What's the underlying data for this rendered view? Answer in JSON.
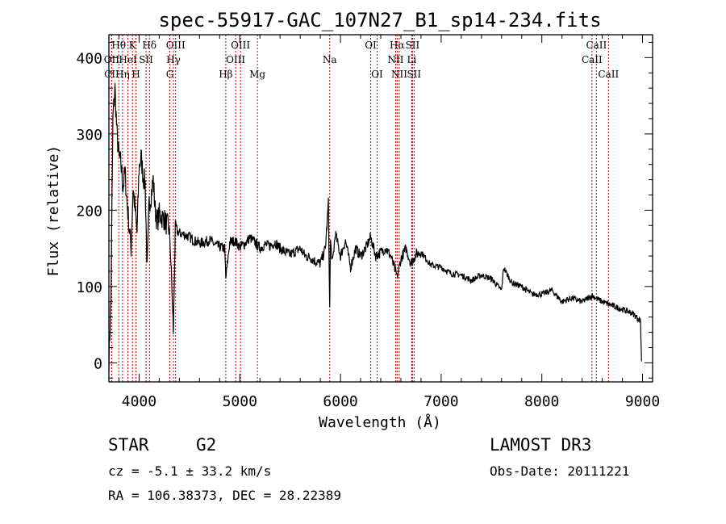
{
  "chart_data": {
    "type": "line",
    "title": "spec-55917-GAC_107N27_B1_sp14-234.fits",
    "xlabel": "Wavelength (Å)",
    "ylabel": "Flux (relative)",
    "xlim": [
      3700,
      9100
    ],
    "ylim": [
      -25,
      430
    ],
    "x_ticks": [
      4000,
      5000,
      6000,
      7000,
      8000,
      9000
    ],
    "y_ticks": [
      0,
      100,
      200,
      300,
      400
    ],
    "series": [
      {
        "name": "flux",
        "x": [
          3700,
          3720,
          3740,
          3760,
          3780,
          3800,
          3820,
          3840,
          3860,
          3880,
          3900,
          3920,
          3940,
          3960,
          3980,
          4000,
          4020,
          4040,
          4060,
          4080,
          4100,
          4120,
          4140,
          4160,
          4180,
          4200,
          4250,
          4300,
          4320,
          4340,
          4360,
          4380,
          4400,
          4450,
          4500,
          4550,
          4600,
          4650,
          4700,
          4750,
          4800,
          4850,
          4861,
          4900,
          4950,
          5000,
          5050,
          5100,
          5150,
          5200,
          5250,
          5300,
          5350,
          5400,
          5450,
          5500,
          5550,
          5600,
          5650,
          5700,
          5750,
          5800,
          5850,
          5880,
          5893,
          5900,
          5920,
          5950,
          6000,
          6050,
          6100,
          6150,
          6200,
          6250,
          6300,
          6350,
          6400,
          6450,
          6500,
          6563,
          6600,
          6650,
          6700,
          6750,
          6800,
          6900,
          7000,
          7100,
          7200,
          7300,
          7400,
          7500,
          7600,
          7620,
          7700,
          7800,
          7900,
          8000,
          8100,
          8200,
          8300,
          8400,
          8500,
          8600,
          8700,
          8800,
          8900,
          8980,
          8990
        ],
        "y": [
          5,
          80,
          320,
          360,
          300,
          270,
          260,
          230,
          250,
          210,
          180,
          150,
          230,
          200,
          170,
          255,
          270,
          245,
          235,
          120,
          210,
          220,
          240,
          200,
          185,
          195,
          188,
          175,
          120,
          40,
          180,
          172,
          170,
          168,
          165,
          160,
          157,
          158,
          161,
          155,
          152,
          150,
          110,
          158,
          160,
          152,
          156,
          164,
          158,
          150,
          155,
          153,
          158,
          150,
          145,
          142,
          146,
          150,
          140,
          138,
          133,
          130,
          150,
          210,
          70,
          160,
          130,
          170,
          140,
          160,
          125,
          150,
          140,
          150,
          165,
          140,
          145,
          150,
          140,
          112,
          136,
          150,
          130,
          142,
          145,
          128,
          125,
          117,
          115,
          108,
          115,
          110,
          95,
          125,
          105,
          100,
          90,
          90,
          95,
          80,
          85,
          80,
          88,
          80,
          75,
          70,
          65,
          55,
          2
        ]
      }
    ],
    "lines": [
      {
        "name": "Hθ",
        "x": 3798,
        "row": 1
      },
      {
        "name": "OII",
        "x": 3727,
        "row": 2
      },
      {
        "name": "CII",
        "x": 3728,
        "row": 3
      },
      {
        "name": "K",
        "x": 3934,
        "row": 1
      },
      {
        "name": "HeI",
        "x": 3889,
        "row": 2
      },
      {
        "name": "Hη",
        "x": 3835,
        "row": 3
      },
      {
        "name": "H",
        "x": 3969,
        "row": 3
      },
      {
        "name": "Hδ",
        "x": 4102,
        "row": 1
      },
      {
        "name": "SII",
        "x": 4069,
        "row": 2
      },
      {
        "name": "OIII",
        "x": 4363,
        "row": 1
      },
      {
        "name": "Hγ",
        "x": 4341,
        "row": 2
      },
      {
        "name": "G",
        "x": 4305,
        "row": 3
      },
      {
        "name": "Hβ",
        "x": 4861,
        "row": 3
      },
      {
        "name": "OIII",
        "x": 5007,
        "row": 1
      },
      {
        "name": "OIII",
        "x": 4959,
        "row": 2
      },
      {
        "name": "Mg",
        "x": 5175,
        "row": 3
      },
      {
        "name": "Na",
        "x": 5893,
        "row": 2
      },
      {
        "name": "OI",
        "x": 6300,
        "row": 1
      },
      {
        "name": "OI",
        "x": 6364,
        "row": 3
      },
      {
        "name": "Hα",
        "x": 6563,
        "row": 1
      },
      {
        "name": "NII",
        "x": 6548,
        "row": 2
      },
      {
        "name": "NII",
        "x": 6584,
        "row": 3
      },
      {
        "name": "SII",
        "x": 6716,
        "row": 1
      },
      {
        "name": "Li",
        "x": 6708,
        "row": 2
      },
      {
        "name": "SII",
        "x": 6731,
        "row": 3
      },
      {
        "name": "CaII",
        "x": 8542,
        "row": 1
      },
      {
        "name": "CaII",
        "x": 8498,
        "row": 2
      },
      {
        "name": "CaII",
        "x": 8662,
        "row": 3
      }
    ],
    "line_color": "#c00000"
  },
  "info": {
    "object_class": "STAR",
    "subclass": "G2",
    "survey": "LAMOST DR3",
    "cz": "cz = -5.1 ± 33.2 km/s",
    "obs_date": "Obs-Date: 20111221",
    "coords": "RA = 106.38373, DEC =  28.22389"
  }
}
